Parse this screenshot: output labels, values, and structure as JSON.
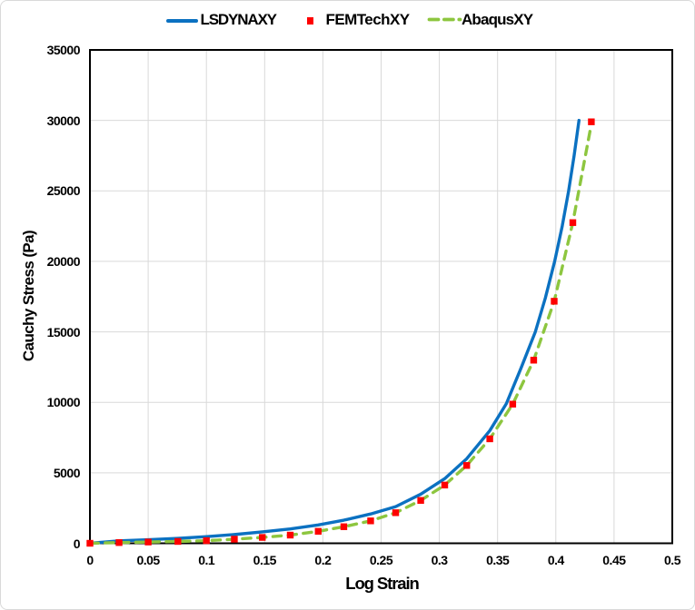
{
  "chart_data": {
    "type": "line",
    "title": "",
    "xlabel": "Log Strain",
    "ylabel": "Cauchy Stress (Pa)",
    "xlim": [
      0,
      0.5
    ],
    "ylim": [
      0,
      35000
    ],
    "x_tick_interval": 0.05,
    "y_tick_interval": 5000,
    "grid": true,
    "legend_position": "top-center",
    "series": [
      {
        "name": "LSDYNAXY",
        "type": "line",
        "line_style": "solid",
        "color": "#0b71c1",
        "points": [
          [
            0,
            0
          ],
          [
            0.025,
            170
          ],
          [
            0.05,
            255
          ],
          [
            0.0755,
            350
          ],
          [
            0.1,
            470
          ],
          [
            0.124,
            620
          ],
          [
            0.148,
            810
          ],
          [
            0.172,
            1020
          ],
          [
            0.196,
            1300
          ],
          [
            0.218,
            1640
          ],
          [
            0.241,
            2080
          ],
          [
            0.2625,
            2600
          ],
          [
            0.284,
            3480
          ],
          [
            0.305,
            4610
          ],
          [
            0.3235,
            6000
          ],
          [
            0.3433,
            7990
          ],
          [
            0.3575,
            9900
          ],
          [
            0.37,
            12400
          ],
          [
            0.3824,
            15000
          ],
          [
            0.391,
            17400
          ],
          [
            0.399,
            20000
          ],
          [
            0.4055,
            22500
          ],
          [
            0.411,
            25000
          ],
          [
            0.4157,
            27500
          ],
          [
            0.4199,
            30000
          ]
        ]
      },
      {
        "name": "FEMTechXY",
        "type": "scatter",
        "marker": "square",
        "color": "#fe0000",
        "points": [
          [
            0,
            0
          ],
          [
            0.025,
            50
          ],
          [
            0.05,
            90
          ],
          [
            0.0755,
            130
          ],
          [
            0.1,
            185
          ],
          [
            0.124,
            290
          ],
          [
            0.148,
            415
          ],
          [
            0.172,
            580
          ],
          [
            0.196,
            850
          ],
          [
            0.218,
            1175
          ],
          [
            0.241,
            1590
          ],
          [
            0.2625,
            2170
          ],
          [
            0.284,
            3040
          ],
          [
            0.3046,
            4130
          ],
          [
            0.3235,
            5520
          ],
          [
            0.3433,
            7410
          ],
          [
            0.363,
            9870
          ],
          [
            0.381,
            12990
          ],
          [
            0.3986,
            17170
          ],
          [
            0.4146,
            22750
          ],
          [
            0.4305,
            29900
          ]
        ]
      },
      {
        "name": "AbaqusXY",
        "type": "line",
        "line_style": "dashed",
        "color": "#8dc63f",
        "points": [
          [
            0,
            0
          ],
          [
            0.025,
            50
          ],
          [
            0.05,
            90
          ],
          [
            0.0755,
            130
          ],
          [
            0.1,
            185
          ],
          [
            0.124,
            290
          ],
          [
            0.148,
            415
          ],
          [
            0.172,
            580
          ],
          [
            0.196,
            850
          ],
          [
            0.218,
            1175
          ],
          [
            0.241,
            1590
          ],
          [
            0.2625,
            2170
          ],
          [
            0.284,
            3040
          ],
          [
            0.3046,
            4130
          ],
          [
            0.3235,
            5520
          ],
          [
            0.3433,
            7410
          ],
          [
            0.363,
            9870
          ],
          [
            0.381,
            12990
          ],
          [
            0.3986,
            17170
          ],
          [
            0.4146,
            22750
          ],
          [
            0.4303,
            29650
          ]
        ]
      }
    ]
  },
  "axes": {
    "x": {
      "title": "Log Strain",
      "ticks": [
        "0",
        "0.05",
        "0.1",
        "0.15",
        "0.2",
        "0.25",
        "0.3",
        "0.35",
        "0.4",
        "0.45",
        "0.5"
      ],
      "tick_values": [
        0,
        0.05,
        0.1,
        0.15,
        0.2,
        0.25,
        0.3,
        0.35,
        0.4,
        0.45,
        0.5
      ]
    },
    "y": {
      "title": "Cauchy Stress (Pa)",
      "ticks": [
        "0",
        "5000",
        "10000",
        "15000",
        "20000",
        "25000",
        "30000",
        "35000"
      ],
      "tick_values": [
        0,
        5000,
        10000,
        15000,
        20000,
        25000,
        30000,
        35000
      ]
    }
  },
  "colors": {
    "background": "#ffffff",
    "outer_border": "#d7d7d7",
    "gridline": "#d9d9d9",
    "axis_line": "#000000",
    "text": "#000000"
  }
}
